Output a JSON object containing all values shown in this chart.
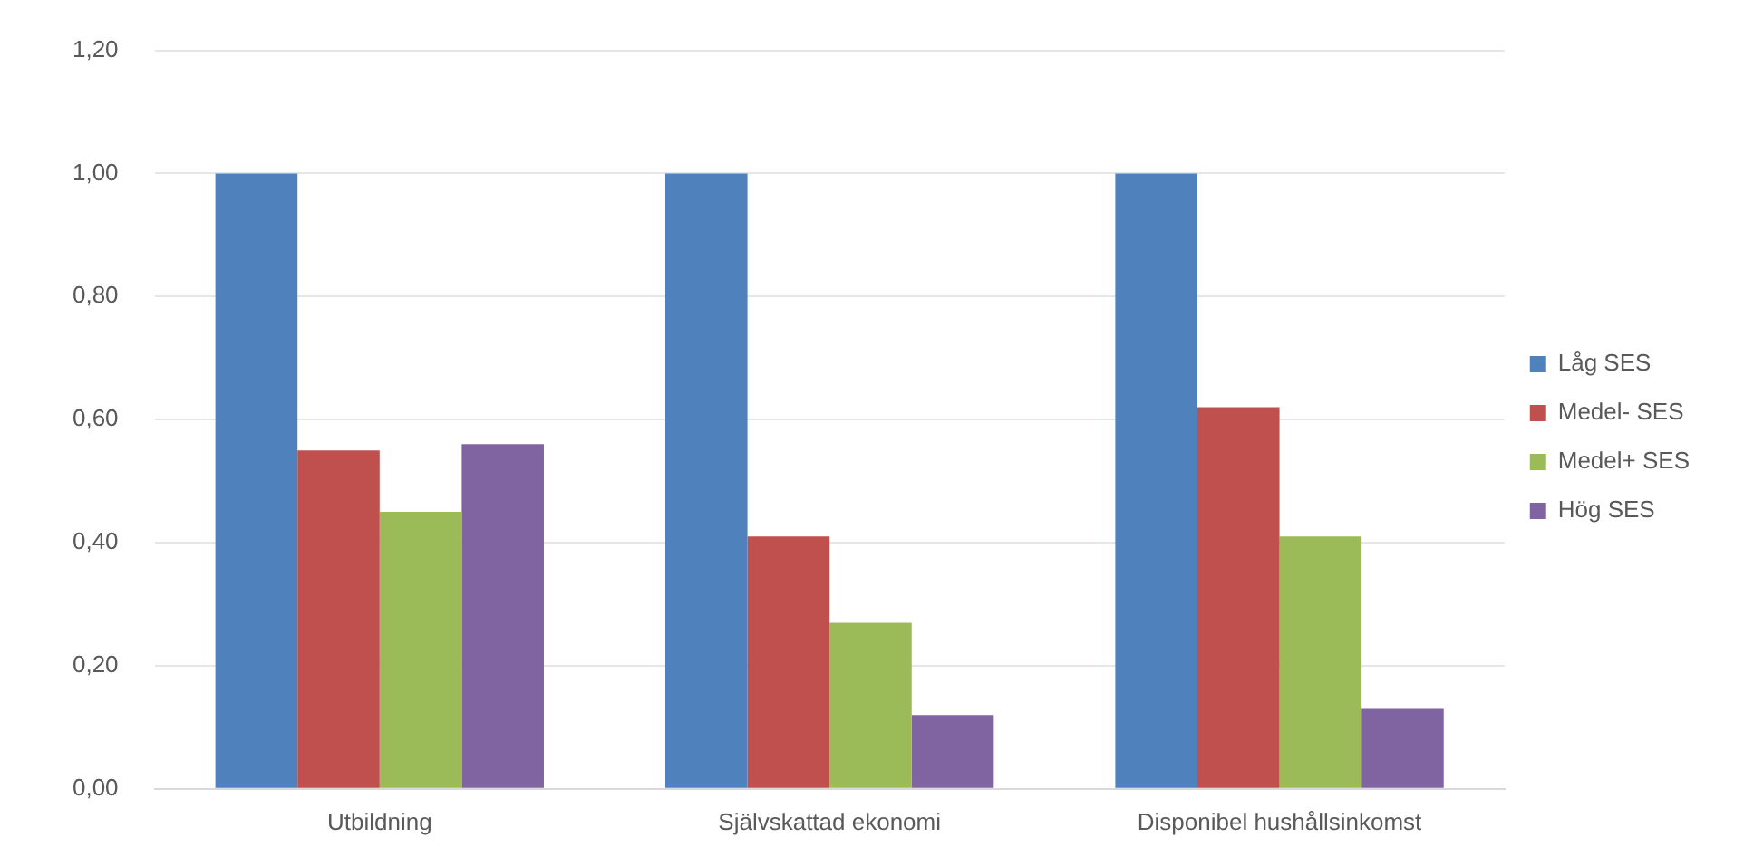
{
  "chart_data": {
    "type": "bar",
    "categories": [
      "Utbildning",
      "Självskattad ekonomi",
      "Disponibel hushållsinkomst"
    ],
    "series": [
      {
        "name": "Låg SES",
        "color": "#4f81bd",
        "values": [
          1.0,
          1.0,
          1.0
        ]
      },
      {
        "name": "Medel- SES",
        "color": "#c0504d",
        "values": [
          0.55,
          0.41,
          0.62
        ]
      },
      {
        "name": "Medel+ SES",
        "color": "#9bbb59",
        "values": [
          0.45,
          0.27,
          0.41
        ]
      },
      {
        "name": "Hög SES",
        "color": "#8064a2",
        "values": [
          0.56,
          0.12,
          0.13
        ]
      }
    ],
    "ylim": [
      0,
      1.2
    ],
    "yticks": [
      {
        "value": 0,
        "label": "0,00"
      },
      {
        "value": 0.2,
        "label": "0,20"
      },
      {
        "value": 0.4,
        "label": "0,40"
      },
      {
        "value": 0.6,
        "label": "0,60"
      },
      {
        "value": 0.8,
        "label": "0,80"
      },
      {
        "value": 1.0,
        "label": "1,00"
      },
      {
        "value": 1.2,
        "label": "1,20"
      }
    ],
    "grid": "y",
    "legend": "right"
  }
}
